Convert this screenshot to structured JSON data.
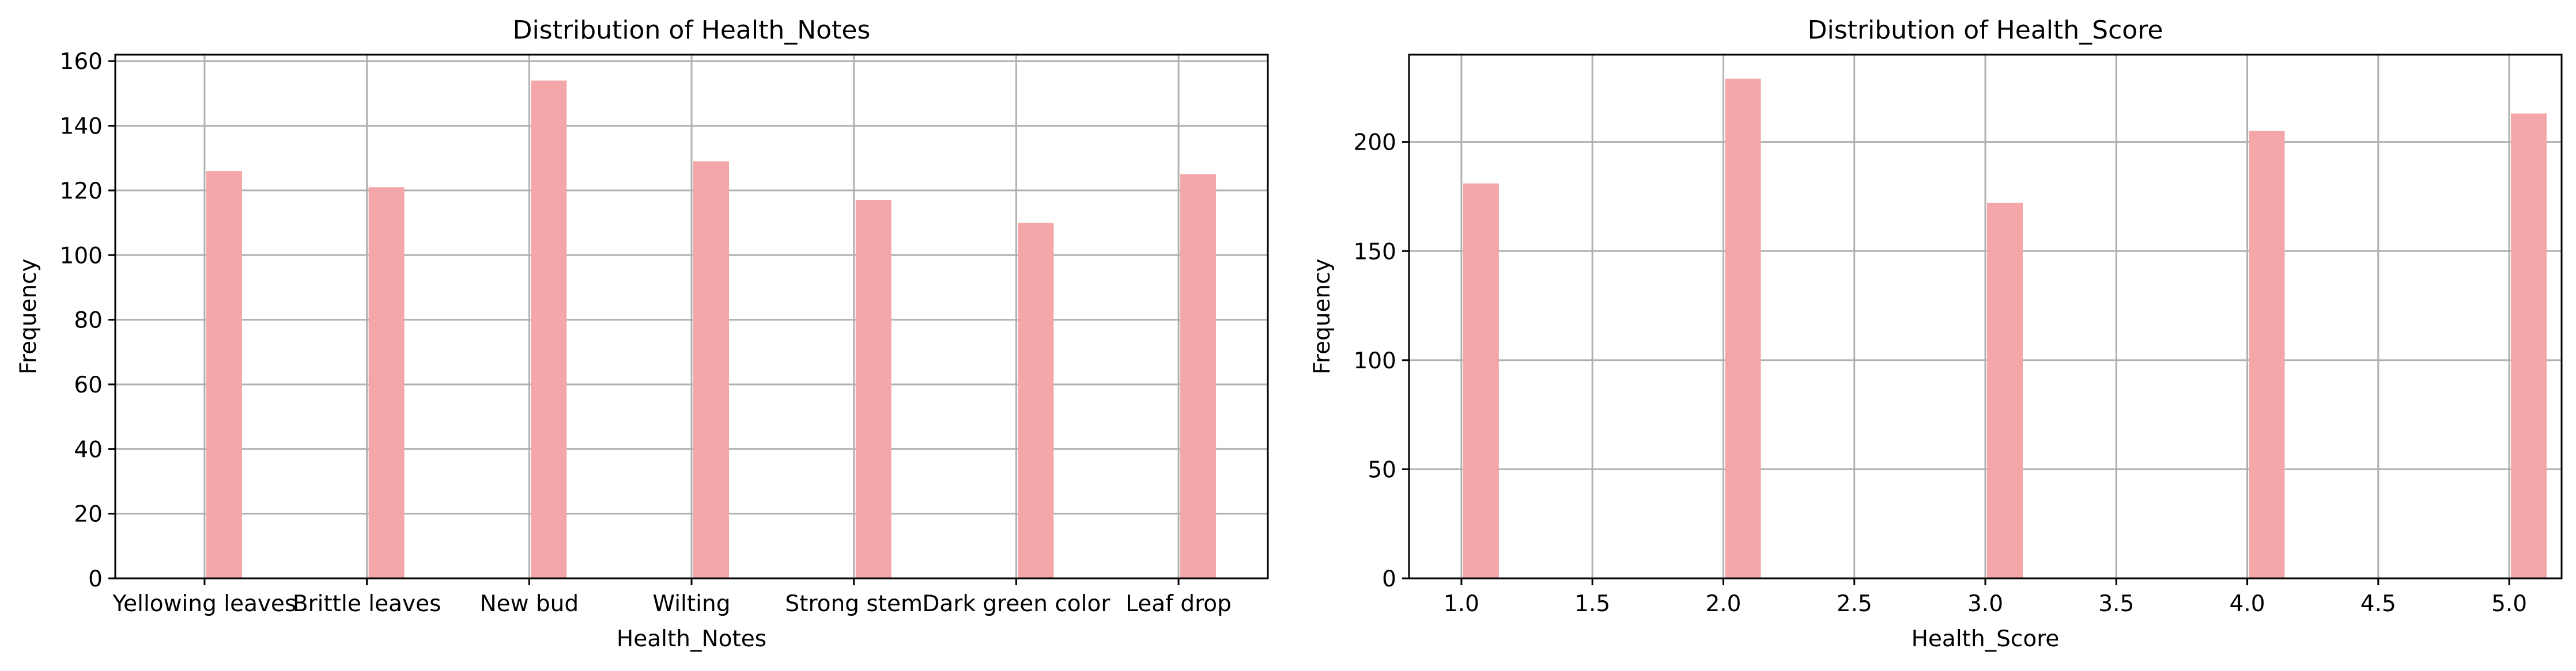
{
  "chart_data": [
    {
      "type": "bar",
      "title": "Distribution of Health_Notes",
      "xlabel": "Health_Notes",
      "ylabel": "Frequency",
      "categories": [
        "Yellowing leaves",
        "Brittle leaves",
        "New bud",
        "Wilting",
        "Strong stem",
        "Dark green color",
        "Leaf drop"
      ],
      "values": [
        126,
        121,
        154,
        129,
        117,
        110,
        125
      ],
      "ylim": [
        0,
        162
      ],
      "yticks": [
        0,
        20,
        40,
        60,
        80,
        100,
        120,
        140,
        160
      ],
      "grid": true,
      "color": "#f4a6a8"
    },
    {
      "type": "bar",
      "title": "Distribution of Health_Score",
      "xlabel": "Health_Score",
      "ylabel": "Frequency",
      "x": [
        1,
        2,
        3,
        4,
        5
      ],
      "values": [
        181,
        229,
        172,
        205,
        213
      ],
      "xlim": [
        0.8,
        5.2
      ],
      "xticks": [
        1.0,
        1.5,
        2.0,
        2.5,
        3.0,
        3.5,
        4.0,
        4.5,
        5.0
      ],
      "ylim": [
        0,
        240
      ],
      "yticks": [
        0,
        50,
        100,
        150,
        200
      ],
      "grid": true,
      "color": "#f4a6a8"
    }
  ]
}
